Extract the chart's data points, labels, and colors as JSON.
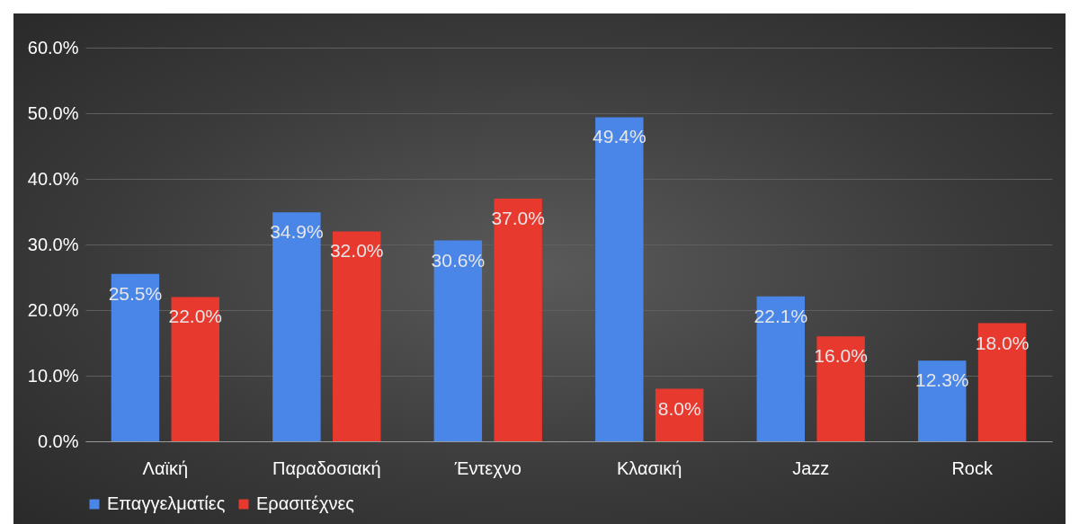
{
  "chart_data": {
    "type": "bar",
    "categories": [
      "Λαϊκή",
      "Παραδοσιακή",
      "Έντεχνο",
      "Κλασική",
      "Jazz",
      "Rock"
    ],
    "series": [
      {
        "name": "Επαγγελματίες",
        "color": "#4a86e8",
        "values": [
          25.5,
          34.9,
          30.6,
          49.4,
          22.1,
          12.3
        ],
        "value_labels": [
          "25.5%",
          "34.9%",
          "30.6%",
          "49.4%",
          "22.1%",
          "12.3%"
        ]
      },
      {
        "name": "Ερασιτέχνες",
        "color": "#e8392f",
        "values": [
          22.0,
          32.0,
          37.0,
          8.0,
          16.0,
          18.0
        ],
        "value_labels": [
          "22.0%",
          "32.0%",
          "37.0%",
          "8.0%",
          "16.0%",
          "18.0%"
        ]
      }
    ],
    "ylim": [
      0,
      60
    ],
    "yticks": [
      {
        "value": 0,
        "label": "0.0%"
      },
      {
        "value": 10,
        "label": "10.0%"
      },
      {
        "value": 20,
        "label": "20.0%"
      },
      {
        "value": 30,
        "label": "30.0%"
      },
      {
        "value": 40,
        "label": "40.0%"
      },
      {
        "value": 50,
        "label": "50.0%"
      },
      {
        "value": 60,
        "label": "60.0%"
      }
    ],
    "grid": "y",
    "legend": "bottom"
  }
}
